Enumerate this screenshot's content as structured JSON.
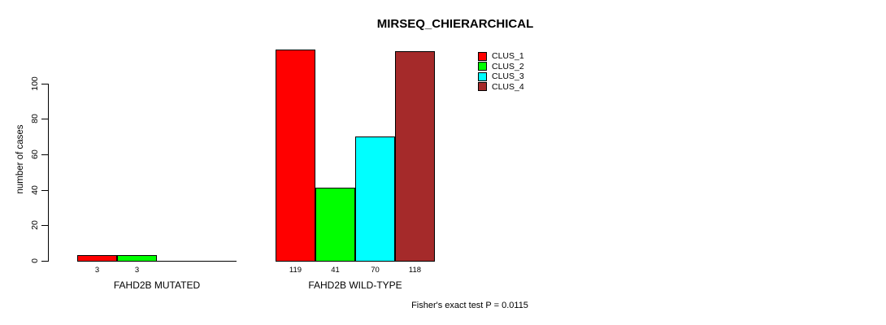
{
  "chart_data": {
    "type": "bar",
    "title": "MIRSEQ_CHIERARCHICAL",
    "ylabel": "number of cases",
    "xlabel": "",
    "ylim": [
      0,
      100
    ],
    "yticks": [
      0,
      20,
      40,
      60,
      80,
      100
    ],
    "grid": false,
    "legend_position": "top-right",
    "categories": [
      "FAHD2B MUTATED",
      "FAHD2B WILD-TYPE"
    ],
    "series": [
      {
        "name": "CLUS_1",
        "color": "#ff0000",
        "values": [
          3,
          119
        ]
      },
      {
        "name": "CLUS_2",
        "color": "#00ff00",
        "values": [
          3,
          41
        ]
      },
      {
        "name": "CLUS_3",
        "color": "#00ffff",
        "values": [
          0,
          70
        ]
      },
      {
        "name": "CLUS_4",
        "color": "#a52a2a",
        "values": [
          0,
          118
        ]
      }
    ],
    "groups": [
      {
        "label": "FAHD2B MUTATED",
        "values": [
          3,
          3,
          0,
          0
        ],
        "bar_labels": [
          "3",
          "3",
          "",
          ""
        ]
      },
      {
        "label": "FAHD2B WILD-TYPE",
        "values": [
          119,
          41,
          70,
          118
        ],
        "bar_labels": [
          "119",
          "41",
          "70",
          "118"
        ]
      }
    ],
    "footer": "Fisher's exact test P = 0.0115"
  }
}
